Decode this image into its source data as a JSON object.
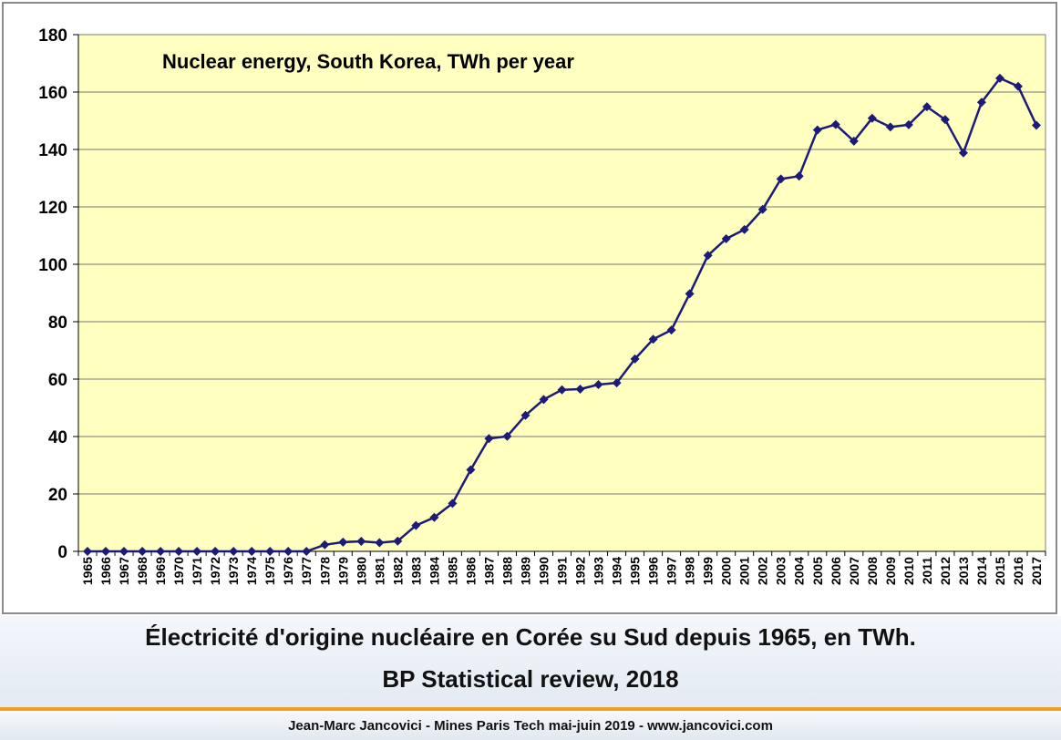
{
  "chart_data": {
    "type": "line",
    "title": "Nuclear energy, South Korea, TWh per year",
    "xlabel": "",
    "ylabel": "",
    "ylim": [
      0,
      180
    ],
    "y_ticks": [
      0,
      20,
      40,
      60,
      80,
      100,
      120,
      140,
      160,
      180
    ],
    "grid": "horizontal",
    "plot_background": "#ffffc0",
    "series_color": "#1c1c78",
    "x": [
      "1965",
      "1966",
      "1967",
      "1968",
      "1969",
      "1970",
      "1971",
      "1972",
      "1973",
      "1974",
      "1975",
      "1976",
      "1977",
      "1978",
      "1979",
      "1980",
      "1981",
      "1982",
      "1983",
      "1984",
      "1985",
      "1986",
      "1987",
      "1988",
      "1989",
      "1990",
      "1991",
      "1992",
      "1993",
      "1994",
      "1995",
      "1996",
      "1997",
      "1998",
      "1999",
      "2000",
      "2001",
      "2002",
      "2003",
      "2004",
      "2005",
      "2006",
      "2007",
      "2008",
      "2009",
      "2010",
      "2011",
      "2012",
      "2013",
      "2014",
      "2015",
      "2016",
      "2017"
    ],
    "series": [
      {
        "name": "",
        "values": [
          0,
          0,
          0,
          0,
          0,
          0,
          0,
          0,
          0,
          0,
          0,
          0,
          0,
          2.3,
          3.2,
          3.5,
          3.0,
          3.6,
          9.0,
          11.8,
          16.7,
          28.4,
          39.3,
          40.1,
          47.4,
          52.9,
          56.3,
          56.5,
          58.1,
          58.7,
          67.0,
          73.9,
          77.1,
          89.7,
          103.1,
          108.9,
          112.1,
          119.1,
          129.7,
          130.7,
          146.8,
          148.7,
          142.9,
          150.9,
          147.8,
          148.6,
          154.9,
          150.4,
          138.8,
          156.4,
          164.8,
          162.0,
          148.4
        ]
      }
    ]
  },
  "caption": {
    "line1": "Électricité d'origine nucléaire en Corée su Sud depuis 1965, en TWh.",
    "line2": "BP Statistical review, 2018"
  },
  "footer": {
    "text": "Jean-Marc Jancovici - Mines Paris Tech mai-juin 2019 - www.jancovici.com"
  },
  "colors": {
    "accent_rule": "#f0a020",
    "frame_border": "#8a8a8a"
  }
}
